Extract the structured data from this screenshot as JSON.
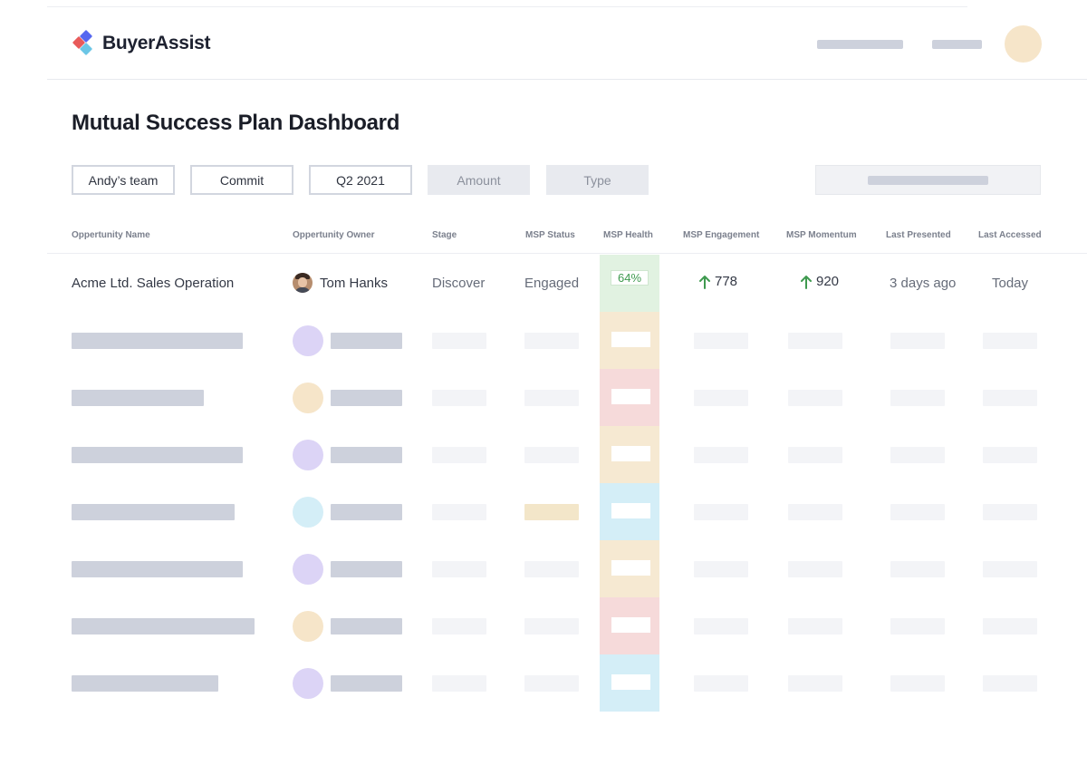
{
  "app": {
    "name": "BuyerAssist",
    "logo_colors": [
      "#e85a5a",
      "#5667f0",
      "#6bc6e6"
    ]
  },
  "page_title": "Mutual Success Plan Dashboard",
  "filters": [
    {
      "label": "Andy’s team",
      "style": "outlined"
    },
    {
      "label": "Commit",
      "style": "outlined"
    },
    {
      "label": "Q2 2021",
      "style": "outlined"
    },
    {
      "label": "Amount",
      "style": "filled"
    },
    {
      "label": "Type",
      "style": "filled"
    }
  ],
  "columns": [
    "Oppertunity Name",
    "Oppertunity Owner",
    "Stage",
    "MSP Status",
    "MSP Health",
    "MSP Engagement",
    "MSP Momentum",
    "Last Presented",
    "Last Accessed"
  ],
  "first_row": {
    "name": "Acme Ltd. Sales Operation",
    "owner": "Tom Hanks",
    "stage": "Discover",
    "msp_status": "Engaged",
    "msp_health": "64%",
    "msp_engagement": "778",
    "msp_momentum": "920",
    "last_presented": "3 days ago",
    "last_accessed": "Today",
    "trend_icon": "arrow-up-icon",
    "health_color": "#e1f2e1",
    "trend_color": "#3f9a4f"
  },
  "placeholder_rows": [
    {
      "health_color": "#f6e9d2",
      "avatar_color": "#dcd4f6",
      "status_color": "#f3f4f7"
    },
    {
      "health_color": "#f6dada",
      "avatar_color": "#f6e5c9",
      "status_color": "#f3f4f7"
    },
    {
      "health_color": "#f6e9d2",
      "avatar_color": "#dcd4f6",
      "status_color": "#f3f4f7"
    },
    {
      "health_color": "#d4eef7",
      "avatar_color": "#d4eef7",
      "status_color": "#f3e6c9"
    },
    {
      "health_color": "#f6e9d2",
      "avatar_color": "#dcd4f6",
      "status_color": "#f3f4f7"
    },
    {
      "health_color": "#f6dada",
      "avatar_color": "#f6e5c9",
      "status_color": "#f3f4f7"
    },
    {
      "health_color": "#d4eef7",
      "avatar_color": "#dcd4f6",
      "status_color": "#f3f4f7"
    }
  ]
}
